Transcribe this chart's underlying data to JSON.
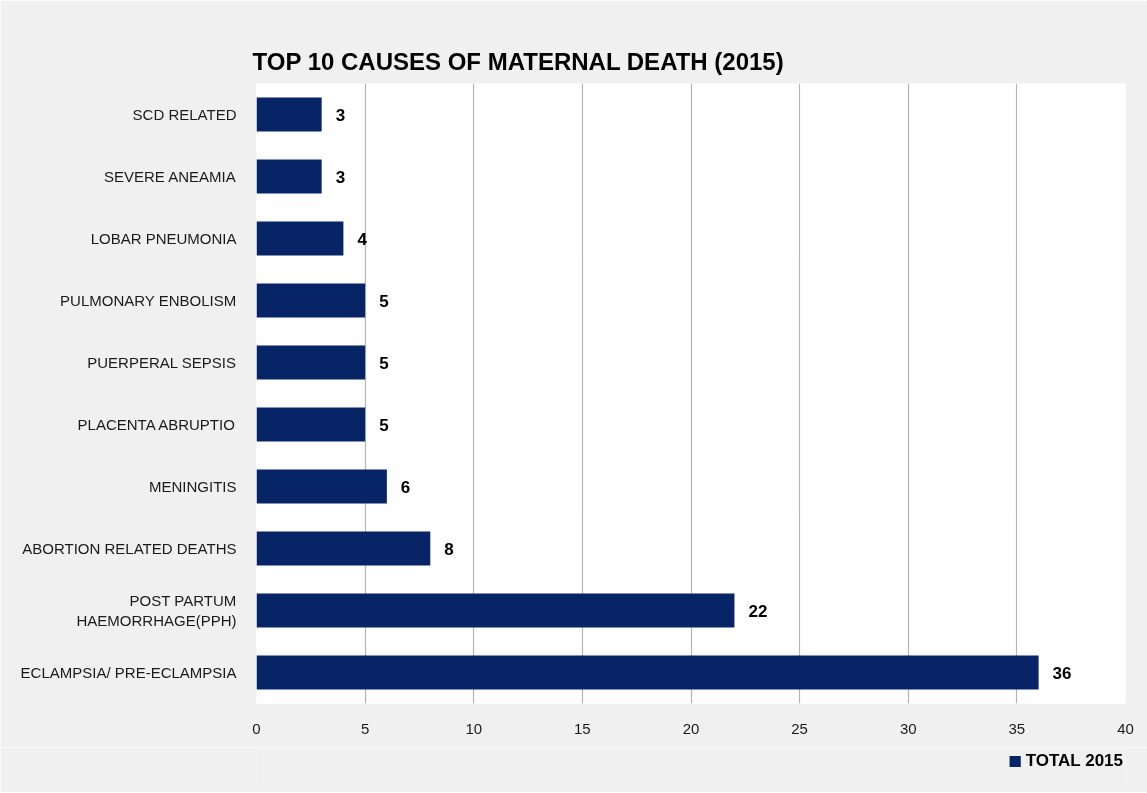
{
  "chart_data": {
    "type": "bar",
    "orientation": "horizontal",
    "title": "TOP 10 CAUSES OF MATERNAL DEATH (2015)",
    "categories": [
      "SCD RELATED",
      "SEVERE ANEAMIA",
      "LOBAR PNEUMONIA",
      "PULMONARY ENBOLISM",
      "PUERPERAL SEPSIS",
      "PLACENTA ABRUPTIO",
      "MENINGITIS",
      "ABORTION RELATED DEATHS",
      "POST PARTUM HAEMORRHAGE(PPH)",
      "ECLAMPSIA/ PRE-ECLAMPSIA"
    ],
    "series": [
      {
        "name": "TOTAL 2015",
        "color": "#062466",
        "values": [
          3,
          3,
          4,
          5,
          5,
          5,
          6,
          8,
          22,
          36
        ]
      }
    ],
    "xlim": [
      0,
      40
    ],
    "xticks": [
      0,
      5,
      10,
      15,
      20,
      25,
      30,
      35,
      40
    ],
    "grid": "x",
    "legend": "bottom right",
    "data_labels": true
  }
}
